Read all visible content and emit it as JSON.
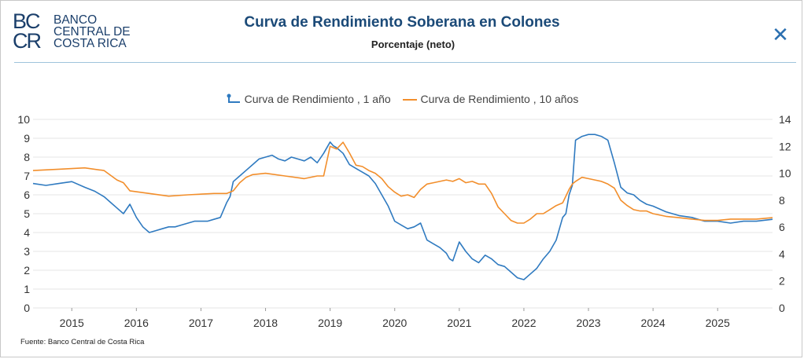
{
  "logo": {
    "mark_top": "BC",
    "mark_bottom": "CR",
    "line1": "BANCO",
    "line2": "CENTRAL DE",
    "line3": "COSTA RICA"
  },
  "header": {
    "title": "Curva de Rendimiento Soberana en Colones",
    "subtitle": "Porcentaje (neto)",
    "close_icon": "close-icon"
  },
  "source": "Fuente: Banco Central de Costa Rica",
  "colors": {
    "series1": "#2f7ac0",
    "series2": "#f28e2b",
    "grid": "#e6e6e6",
    "brand": "#1b3f6b"
  },
  "chart_data": {
    "type": "line",
    "title": "Curva de Rendimiento Soberana en Colones",
    "subtitle": "Porcentaje (neto)",
    "legend_position": "top-center",
    "x_tick_labels": [
      "2015",
      "2016",
      "2017",
      "2018",
      "2019",
      "2020",
      "2021",
      "2022",
      "2023",
      "2024",
      "2025"
    ],
    "xlim": [
      2014.4,
      2025.85
    ],
    "y_left": {
      "lim": [
        0,
        10
      ],
      "ticks": [
        0,
        1,
        2,
        3,
        4,
        5,
        6,
        7,
        8,
        9,
        10
      ]
    },
    "y_right": {
      "lim": [
        0,
        14
      ],
      "ticks": [
        0,
        2,
        4,
        6,
        8,
        10,
        12,
        14
      ]
    },
    "series": [
      {
        "name": "Curva de Rendimiento , 1 año",
        "axis": "left",
        "x": [
          2014.4,
          2014.6,
          2014.8,
          2015.0,
          2015.2,
          2015.35,
          2015.5,
          2015.6,
          2015.7,
          2015.8,
          2015.9,
          2016.0,
          2016.1,
          2016.2,
          2016.3,
          2016.4,
          2016.5,
          2016.6,
          2016.7,
          2016.8,
          2016.9,
          2017.0,
          2017.1,
          2017.2,
          2017.3,
          2017.4,
          2017.45,
          2017.5,
          2017.6,
          2017.7,
          2017.8,
          2017.9,
          2018.0,
          2018.1,
          2018.2,
          2018.3,
          2018.4,
          2018.5,
          2018.6,
          2018.7,
          2018.8,
          2018.9,
          2019.0,
          2019.05,
          2019.1,
          2019.2,
          2019.3,
          2019.4,
          2019.5,
          2019.6,
          2019.7,
          2019.8,
          2019.9,
          2020.0,
          2020.1,
          2020.2,
          2020.3,
          2020.4,
          2020.5,
          2020.6,
          2020.7,
          2020.8,
          2020.85,
          2020.9,
          2021.0,
          2021.1,
          2021.2,
          2021.3,
          2021.4,
          2021.5,
          2021.6,
          2021.7,
          2021.8,
          2021.9,
          2022.0,
          2022.1,
          2022.2,
          2022.3,
          2022.4,
          2022.5,
          2022.6,
          2022.65,
          2022.7,
          2022.75,
          2022.8,
          2022.9,
          2023.0,
          2023.1,
          2023.2,
          2023.3,
          2023.4,
          2023.5,
          2023.6,
          2023.7,
          2023.8,
          2023.9,
          2024.0,
          2024.2,
          2024.4,
          2024.6,
          2024.8,
          2025.0,
          2025.2,
          2025.4,
          2025.6,
          2025.85
        ],
        "values": [
          6.6,
          6.5,
          6.6,
          6.7,
          6.4,
          6.2,
          5.9,
          5.6,
          5.3,
          5.0,
          5.5,
          4.8,
          4.3,
          4.0,
          4.1,
          4.2,
          4.3,
          4.3,
          4.4,
          4.5,
          4.6,
          4.6,
          4.6,
          4.7,
          4.8,
          5.6,
          5.9,
          6.7,
          7.0,
          7.3,
          7.6,
          7.9,
          8.0,
          8.1,
          7.9,
          7.8,
          8.0,
          7.9,
          7.8,
          8.0,
          7.7,
          8.2,
          8.8,
          8.6,
          8.5,
          8.2,
          7.6,
          7.4,
          7.2,
          7.0,
          6.6,
          6.0,
          5.4,
          4.6,
          4.4,
          4.2,
          4.3,
          4.5,
          3.6,
          3.4,
          3.2,
          2.9,
          2.6,
          2.5,
          3.5,
          3.0,
          2.6,
          2.4,
          2.8,
          2.6,
          2.3,
          2.2,
          1.9,
          1.6,
          1.5,
          1.8,
          2.1,
          2.6,
          3.0,
          3.6,
          4.8,
          5.0,
          6.0,
          6.5,
          8.9,
          9.1,
          9.2,
          9.2,
          9.1,
          8.9,
          7.7,
          6.4,
          6.1,
          6.0,
          5.7,
          5.5,
          5.4,
          5.1,
          4.9,
          4.8,
          4.6,
          4.6,
          4.5,
          4.6,
          4.6,
          4.7
        ]
      },
      {
        "name": "Curva de Rendimiento , 10 años",
        "axis": "right",
        "x": [
          2014.4,
          2014.8,
          2015.2,
          2015.5,
          2015.7,
          2015.8,
          2015.9,
          2016.2,
          2016.5,
          2016.8,
          2017.2,
          2017.4,
          2017.5,
          2017.6,
          2017.7,
          2017.8,
          2018.0,
          2018.3,
          2018.6,
          2018.8,
          2018.9,
          2019.0,
          2019.1,
          2019.2,
          2019.3,
          2019.4,
          2019.5,
          2019.6,
          2019.7,
          2019.8,
          2019.9,
          2020.0,
          2020.1,
          2020.2,
          2020.3,
          2020.4,
          2020.5,
          2020.6,
          2020.7,
          2020.8,
          2020.9,
          2021.0,
          2021.1,
          2021.2,
          2021.3,
          2021.4,
          2021.5,
          2021.6,
          2021.7,
          2021.8,
          2021.9,
          2022.0,
          2022.1,
          2022.2,
          2022.3,
          2022.4,
          2022.5,
          2022.6,
          2022.7,
          2022.75,
          2022.8,
          2022.9,
          2023.0,
          2023.1,
          2023.2,
          2023.3,
          2023.4,
          2023.5,
          2023.6,
          2023.7,
          2023.8,
          2023.9,
          2024.0,
          2024.2,
          2024.4,
          2024.6,
          2024.8,
          2025.0,
          2025.2,
          2025.4,
          2025.6,
          2025.85
        ],
        "values": [
          10.2,
          10.3,
          10.4,
          10.2,
          9.5,
          9.3,
          8.7,
          8.5,
          8.3,
          8.4,
          8.5,
          8.5,
          8.7,
          9.3,
          9.7,
          9.9,
          10.0,
          9.8,
          9.6,
          9.8,
          9.8,
          12.0,
          11.8,
          12.3,
          11.5,
          10.6,
          10.5,
          10.2,
          10.0,
          9.6,
          9.0,
          8.6,
          8.3,
          8.4,
          8.2,
          8.8,
          9.2,
          9.3,
          9.4,
          9.5,
          9.4,
          9.6,
          9.3,
          9.4,
          9.2,
          9.2,
          8.5,
          7.5,
          7.0,
          6.5,
          6.3,
          6.3,
          6.6,
          7.0,
          7.0,
          7.3,
          7.6,
          7.8,
          8.8,
          9.2,
          9.4,
          9.7,
          9.6,
          9.5,
          9.4,
          9.2,
          8.9,
          8.0,
          7.6,
          7.3,
          7.2,
          7.2,
          7.0,
          6.8,
          6.7,
          6.6,
          6.5,
          6.5,
          6.6,
          6.6,
          6.6,
          6.7
        ]
      }
    ]
  }
}
